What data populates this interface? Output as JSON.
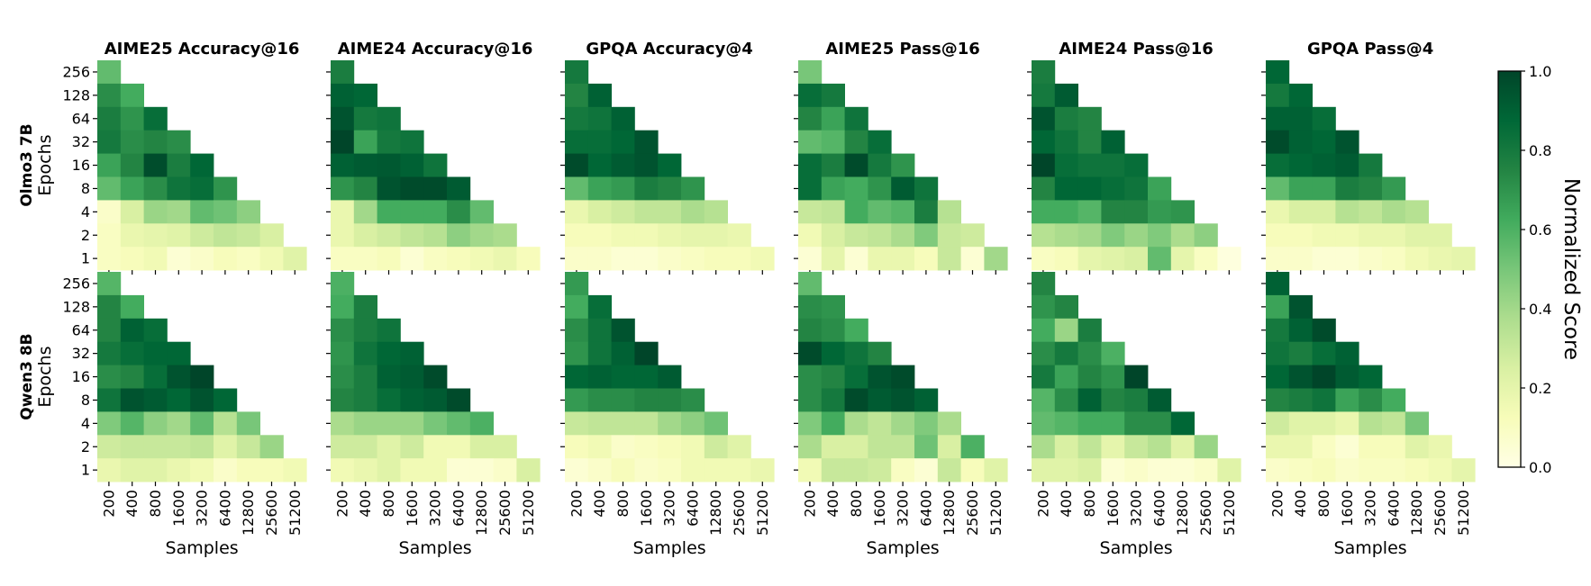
{
  "chart_data": {
    "type": "heatmap",
    "colormap": [
      "#ffffe5",
      "#f7fcb9",
      "#d9f0a3",
      "#addd8e",
      "#78c679",
      "#41ab5d",
      "#238443",
      "#006837",
      "#004529"
    ],
    "y_ticks": [
      "256",
      "128",
      "64",
      "32",
      "16",
      "8",
      "4",
      "2",
      "1"
    ],
    "x_ticks": [
      "200",
      "400",
      "800",
      "1600",
      "3200",
      "6400",
      "12800",
      "25600",
      "51200"
    ],
    "xlabel": "Samples",
    "ylabel": "Epochs",
    "colorbar": {
      "label": "Normalized Score",
      "ticks": [
        "0.0",
        "0.2",
        "0.4",
        "0.6",
        "0.8",
        "1.0"
      ],
      "range": [
        0,
        1
      ]
    },
    "rows": [
      {
        "label": "Olmo3 7B",
        "panels": [
          {
            "title": "AIME25 Accuracy@16",
            "values": [
              [
                0.55
              ],
              [
                0.72,
                0.62
              ],
              [
                0.78,
                0.7,
                0.85
              ],
              [
                0.8,
                0.72,
                0.75,
                0.72
              ],
              [
                0.65,
                0.75,
                0.97,
                0.78,
                0.88
              ],
              [
                0.55,
                0.65,
                0.72,
                0.82,
                0.85,
                0.7
              ],
              [
                0.08,
                0.25,
                0.42,
                0.4,
                0.55,
                0.52,
                0.45
              ],
              [
                0.1,
                0.18,
                0.2,
                0.22,
                0.28,
                0.32,
                0.3,
                0.25
              ],
              [
                0.1,
                0.12,
                0.15,
                0.05,
                0.08,
                0.12,
                0.1,
                0.15,
                0.22
              ]
            ]
          },
          {
            "title": "AIME24 Accuracy@16",
            "values": [
              [
                0.78
              ],
              [
                0.9,
                0.88
              ],
              [
                0.95,
                0.8,
                0.82
              ],
              [
                1.0,
                0.65,
                0.8,
                0.82
              ],
              [
                0.9,
                0.92,
                0.93,
                0.9,
                0.82
              ],
              [
                0.7,
                0.75,
                0.95,
                0.98,
                0.98,
                0.92
              ],
              [
                0.18,
                0.4,
                0.62,
                0.62,
                0.62,
                0.72,
                0.55
              ],
              [
                0.18,
                0.25,
                0.28,
                0.32,
                0.35,
                0.45,
                0.4,
                0.38
              ],
              [
                0.1,
                0.1,
                0.12,
                0.05,
                0.1,
                0.12,
                0.15,
                0.18,
                0.12
              ]
            ]
          },
          {
            "title": "GPQA Accuracy@4",
            "values": [
              [
                0.8
              ],
              [
                0.75,
                0.9
              ],
              [
                0.8,
                0.82,
                0.9
              ],
              [
                0.85,
                0.85,
                0.88,
                0.95
              ],
              [
                0.98,
                0.88,
                0.92,
                0.95,
                0.88
              ],
              [
                0.55,
                0.65,
                0.68,
                0.78,
                0.75,
                0.7
              ],
              [
                0.18,
                0.25,
                0.28,
                0.32,
                0.32,
                0.38,
                0.35
              ],
              [
                0.12,
                0.12,
                0.15,
                0.15,
                0.18,
                0.2,
                0.2,
                0.18
              ],
              [
                0.08,
                0.08,
                0.05,
                0.05,
                0.08,
                0.1,
                0.12,
                0.12,
                0.15
              ]
            ]
          },
          {
            "title": "AIME25 Pass@16",
            "values": [
              [
                0.5
              ],
              [
                0.85,
                0.8
              ],
              [
                0.75,
                0.65,
                0.82
              ],
              [
                0.55,
                0.58,
                0.75,
                0.85
              ],
              [
                0.85,
                0.78,
                0.98,
                0.8,
                0.7
              ],
              [
                0.85,
                0.65,
                0.62,
                0.7,
                0.92,
                0.82
              ],
              [
                0.3,
                0.32,
                0.62,
                0.55,
                0.58,
                0.78,
                0.35
              ],
              [
                0.15,
                0.25,
                0.3,
                0.32,
                0.38,
                0.48,
                0.3,
                0.28
              ],
              [
                0.05,
                0.2,
                0.05,
                0.18,
                0.18,
                0.12,
                0.3,
                0.05,
                0.4
              ]
            ]
          },
          {
            "title": "AIME24 Pass@16",
            "values": [
              [
                0.78
              ],
              [
                0.8,
                0.92
              ],
              [
                0.95,
                0.78,
                0.75
              ],
              [
                0.88,
                0.82,
                0.75,
                0.9
              ],
              [
                1.0,
                0.85,
                0.82,
                0.82,
                0.85
              ],
              [
                0.75,
                0.88,
                0.88,
                0.85,
                0.82,
                0.65
              ],
              [
                0.62,
                0.62,
                0.58,
                0.75,
                0.75,
                0.68,
                0.7
              ],
              [
                0.35,
                0.38,
                0.4,
                0.48,
                0.42,
                0.48,
                0.38,
                0.45
              ],
              [
                0.1,
                0.12,
                0.2,
                0.22,
                0.25,
                0.55,
                0.2,
                0.1,
                0.02
              ]
            ]
          },
          {
            "title": "GPQA Pass@4",
            "values": [
              [
                0.88
              ],
              [
                0.8,
                0.88
              ],
              [
                0.9,
                0.9,
                0.85
              ],
              [
                0.98,
                0.9,
                0.88,
                0.95
              ],
              [
                0.85,
                0.88,
                0.9,
                0.92,
                0.8
              ],
              [
                0.55,
                0.65,
                0.65,
                0.78,
                0.75,
                0.68
              ],
              [
                0.18,
                0.25,
                0.25,
                0.35,
                0.32,
                0.38,
                0.35
              ],
              [
                0.12,
                0.12,
                0.15,
                0.15,
                0.18,
                0.18,
                0.22,
                0.22
              ],
              [
                0.08,
                0.08,
                0.05,
                0.05,
                0.08,
                0.1,
                0.15,
                0.18,
                0.2
              ]
            ]
          }
        ]
      },
      {
        "label": "Qwen3 8B",
        "panels": [
          {
            "title": "AIME25 Accuracy@16",
            "values": [
              [
                0.58
              ],
              [
                0.75,
                0.62
              ],
              [
                0.75,
                0.9,
                0.85
              ],
              [
                0.8,
                0.85,
                0.88,
                0.88
              ],
              [
                0.72,
                0.75,
                0.85,
                0.95,
                1.0
              ],
              [
                0.82,
                0.95,
                0.92,
                0.88,
                0.95,
                0.88
              ],
              [
                0.48,
                0.58,
                0.45,
                0.4,
                0.55,
                0.35,
                0.5
              ],
              [
                0.28,
                0.3,
                0.3,
                0.3,
                0.32,
                0.22,
                0.3,
                0.42
              ],
              [
                0.18,
                0.22,
                0.22,
                0.18,
                0.15,
                0.08,
                0.12,
                0.12,
                0.15
              ]
            ]
          },
          {
            "title": "AIME24 Accuracy@16",
            "values": [
              [
                0.6
              ],
              [
                0.62,
                0.78
              ],
              [
                0.72,
                0.78,
                0.82
              ],
              [
                0.7,
                0.82,
                0.88,
                0.9
              ],
              [
                0.72,
                0.78,
                0.9,
                0.92,
                0.98
              ],
              [
                0.75,
                0.78,
                0.85,
                0.9,
                0.92,
                0.98
              ],
              [
                0.38,
                0.42,
                0.42,
                0.42,
                0.5,
                0.55,
                0.6
              ],
              [
                0.28,
                0.28,
                0.22,
                0.28,
                0.15,
                0.15,
                0.25,
                0.25
              ],
              [
                0.15,
                0.18,
                0.22,
                0.15,
                0.15,
                0.05,
                0.05,
                0.08,
                0.25
              ]
            ]
          },
          {
            "title": "GPQA Accuracy@4",
            "values": [
              [
                0.68
              ],
              [
                0.62,
                0.85
              ],
              [
                0.72,
                0.82,
                0.95
              ],
              [
                0.7,
                0.82,
                0.9,
                1.0
              ],
              [
                0.88,
                0.9,
                0.88,
                0.88,
                0.92
              ],
              [
                0.68,
                0.72,
                0.72,
                0.75,
                0.75,
                0.72
              ],
              [
                0.3,
                0.32,
                0.32,
                0.32,
                0.4,
                0.45,
                0.52
              ],
              [
                0.12,
                0.15,
                0.08,
                0.1,
                0.12,
                0.15,
                0.28,
                0.22
              ],
              [
                0.05,
                0.08,
                0.12,
                0.08,
                0.1,
                0.15,
                0.15,
                0.15,
                0.18
              ]
            ]
          },
          {
            "title": "AIME25 Pass@16",
            "values": [
              [
                0.55
              ],
              [
                0.72,
                0.7
              ],
              [
                0.75,
                0.72,
                0.62
              ],
              [
                0.98,
                0.88,
                0.82,
                0.75
              ],
              [
                0.72,
                0.75,
                0.85,
                0.95,
                0.98
              ],
              [
                0.72,
                0.8,
                0.98,
                0.92,
                0.95,
                0.9
              ],
              [
                0.48,
                0.62,
                0.38,
                0.32,
                0.4,
                0.48,
                0.38
              ],
              [
                0.38,
                0.25,
                0.25,
                0.32,
                0.32,
                0.52,
                0.25,
                0.6
              ],
              [
                0.15,
                0.3,
                0.3,
                0.28,
                0.1,
                0.05,
                0.3,
                0.12,
                0.22
              ]
            ]
          },
          {
            "title": "AIME24 Pass@16",
            "values": [
              [
                0.75
              ],
              [
                0.7,
                0.75
              ],
              [
                0.62,
                0.42,
                0.78
              ],
              [
                0.72,
                0.8,
                0.72,
                0.6
              ],
              [
                0.8,
                0.65,
                0.75,
                0.7,
                1.0
              ],
              [
                0.58,
                0.72,
                0.9,
                0.75,
                0.78,
                0.92
              ],
              [
                0.55,
                0.58,
                0.62,
                0.62,
                0.72,
                0.72,
                0.88
              ],
              [
                0.38,
                0.25,
                0.32,
                0.2,
                0.3,
                0.35,
                0.22,
                0.42
              ],
              [
                0.22,
                0.22,
                0.25,
                0.05,
                0.08,
                0.05,
                0.05,
                0.08,
                0.22
              ]
            ]
          },
          {
            "title": "GPQA Pass@4",
            "values": [
              [
                0.9
              ],
              [
                0.65,
                0.95
              ],
              [
                0.8,
                0.9,
                0.98
              ],
              [
                0.82,
                0.78,
                0.85,
                0.9
              ],
              [
                0.88,
                0.95,
                1.0,
                0.92,
                0.88
              ],
              [
                0.75,
                0.78,
                0.82,
                0.65,
                0.72,
                0.62
              ],
              [
                0.28,
                0.22,
                0.22,
                0.18,
                0.35,
                0.32,
                0.5
              ],
              [
                0.18,
                0.18,
                0.1,
                0.05,
                0.12,
                0.12,
                0.22,
                0.18
              ],
              [
                0.08,
                0.1,
                0.12,
                0.08,
                0.1,
                0.1,
                0.12,
                0.15,
                0.2
              ]
            ]
          }
        ]
      }
    ]
  }
}
